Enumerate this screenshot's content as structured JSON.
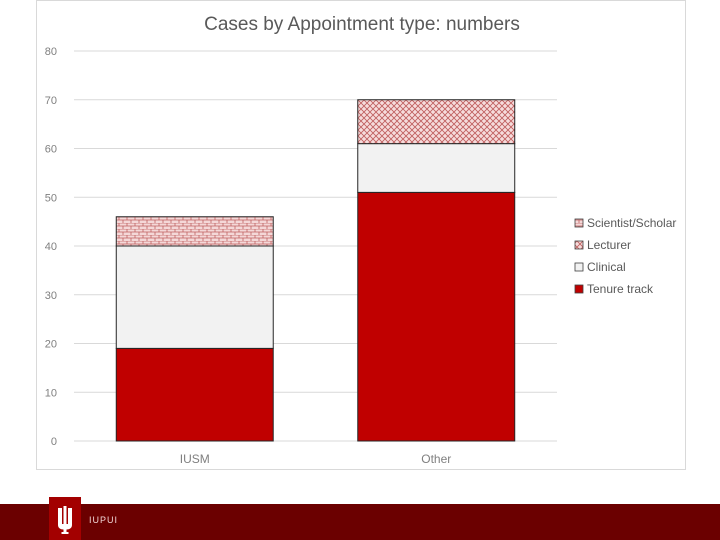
{
  "chart_data": {
    "type": "bar",
    "stacked": true,
    "title": "Cases by Appointment type:  numbers",
    "categories": [
      "IUSM",
      "Other"
    ],
    "ylim": [
      0,
      80
    ],
    "yticks": [
      0,
      10,
      20,
      30,
      40,
      50,
      60,
      70,
      80
    ],
    "grid": true,
    "legend_position": "right",
    "series": [
      {
        "name": "Tenure track",
        "values": [
          19,
          51
        ],
        "color": "#c00000",
        "pattern": "solid"
      },
      {
        "name": "Clinical",
        "values": [
          21,
          10
        ],
        "color": "#f2f2f2",
        "pattern": "solid"
      },
      {
        "name": "Lecturer",
        "values": [
          0,
          9
        ],
        "color": "#e6b8b8",
        "pattern": "crosshatch"
      },
      {
        "name": "Scientist/Scholar",
        "values": [
          6,
          0
        ],
        "color": "#e6b8b8",
        "pattern": "brick"
      }
    ],
    "legend_order": [
      "Scientist/Scholar",
      "Lecturer",
      "Clinical",
      "Tenure track"
    ]
  },
  "footer": {
    "brand": "IUPUI",
    "logo_icon": "trident-icon",
    "bar_color": "#6b0000",
    "logo_color": "#a30000"
  }
}
